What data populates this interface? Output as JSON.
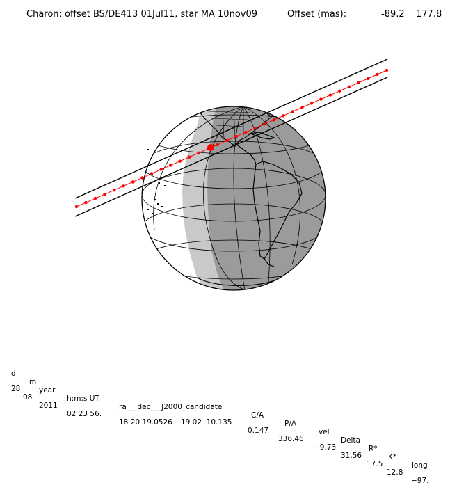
{
  "header": {
    "title": "Charon: offset BS/DE413 01Jul11, star MA 10nov09",
    "offset_label": "Offset (mas):",
    "offset_ra": "-89.2",
    "offset_dec": "177.8"
  },
  "map": {
    "colors": {
      "night": "#9b9b9b",
      "twilight": "#c9c9c9",
      "day": "#ffffff",
      "track": "#ff0000",
      "lines": "#000000"
    },
    "events": [
      "path-shadow-center",
      "path-shadow-limits",
      "closest-approach-point"
    ]
  },
  "table": {
    "headers": [
      "d",
      "m",
      "year",
      "h:m:s UT",
      "ra___dec___J2000_candidate",
      "C/A",
      "P/A",
      "vel",
      "Delta",
      "R*",
      "K*",
      "long"
    ],
    "values": [
      "28",
      "08",
      "2011",
      "02 23 56.",
      "18 20 19.0526 −19 02  10.135",
      "0.147",
      "336.46",
      "−9.73",
      "31.56",
      "17.5",
      "12.8",
      "−97."
    ]
  }
}
